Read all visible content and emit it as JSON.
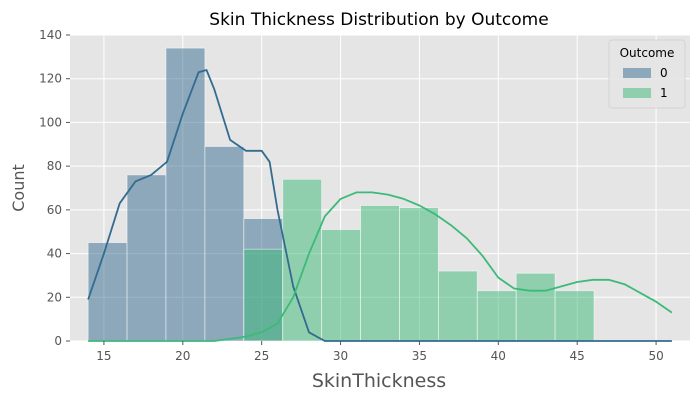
{
  "chart_data": {
    "type": "bar",
    "title": "Skin Thickness Distribution by Outcome",
    "xlabel": "SkinThickness",
    "ylabel": "Count",
    "xlim": [
      12.85,
      52.15
    ],
    "ylim": [
      0,
      140
    ],
    "xticks": [
      15,
      20,
      25,
      30,
      35,
      40,
      45,
      50
    ],
    "yticks": [
      0,
      20,
      40,
      60,
      80,
      100,
      120,
      140
    ],
    "grid": true,
    "legend": {
      "title": "Outcome",
      "placement": "top-right"
    },
    "bin_edges": [
      14,
      16.467,
      18.933,
      21.4,
      23.867,
      26.333,
      28.8,
      31.267,
      33.733,
      36.2,
      38.667,
      41.133,
      43.6,
      46.067,
      48.533,
      51
    ],
    "series": [
      {
        "name": "0",
        "color": "#336b8f",
        "counts": [
          45,
          76,
          134,
          89,
          56,
          0,
          0,
          0,
          0,
          0,
          0,
          0,
          0,
          0,
          0
        ],
        "kde": [
          [
            14,
            19
          ],
          [
            15,
            40
          ],
          [
            16,
            63
          ],
          [
            17,
            73
          ],
          [
            18,
            76
          ],
          [
            19,
            82
          ],
          [
            20,
            104
          ],
          [
            21,
            123
          ],
          [
            21.5,
            124
          ],
          [
            22,
            115
          ],
          [
            23,
            92
          ],
          [
            24,
            87
          ],
          [
            25,
            87
          ],
          [
            25.5,
            82
          ],
          [
            26,
            60
          ],
          [
            27,
            25
          ],
          [
            28,
            4
          ],
          [
            29,
            0
          ],
          [
            51,
            0
          ]
        ]
      },
      {
        "name": "1",
        "color": "#3cba78",
        "counts": [
          0,
          0,
          0,
          0,
          42,
          74,
          51,
          62,
          61,
          32,
          23,
          31,
          23,
          0,
          0
        ],
        "kde": [
          [
            14,
            0
          ],
          [
            22,
            0
          ],
          [
            24,
            2
          ],
          [
            25,
            4
          ],
          [
            26,
            8
          ],
          [
            27,
            20
          ],
          [
            28,
            40
          ],
          [
            29,
            57
          ],
          [
            30,
            65
          ],
          [
            31,
            68
          ],
          [
            32,
            68
          ],
          [
            33,
            67
          ],
          [
            34,
            65
          ],
          [
            35,
            62
          ],
          [
            36,
            58
          ],
          [
            37,
            53
          ],
          [
            38,
            47
          ],
          [
            39,
            39
          ],
          [
            40,
            29
          ],
          [
            41,
            24
          ],
          [
            42,
            23
          ],
          [
            43,
            23
          ],
          [
            44,
            25
          ],
          [
            45,
            27
          ],
          [
            46,
            28
          ],
          [
            47,
            28
          ],
          [
            48,
            26
          ],
          [
            49,
            22
          ],
          [
            50,
            18
          ],
          [
            51,
            13
          ]
        ]
      }
    ]
  }
}
